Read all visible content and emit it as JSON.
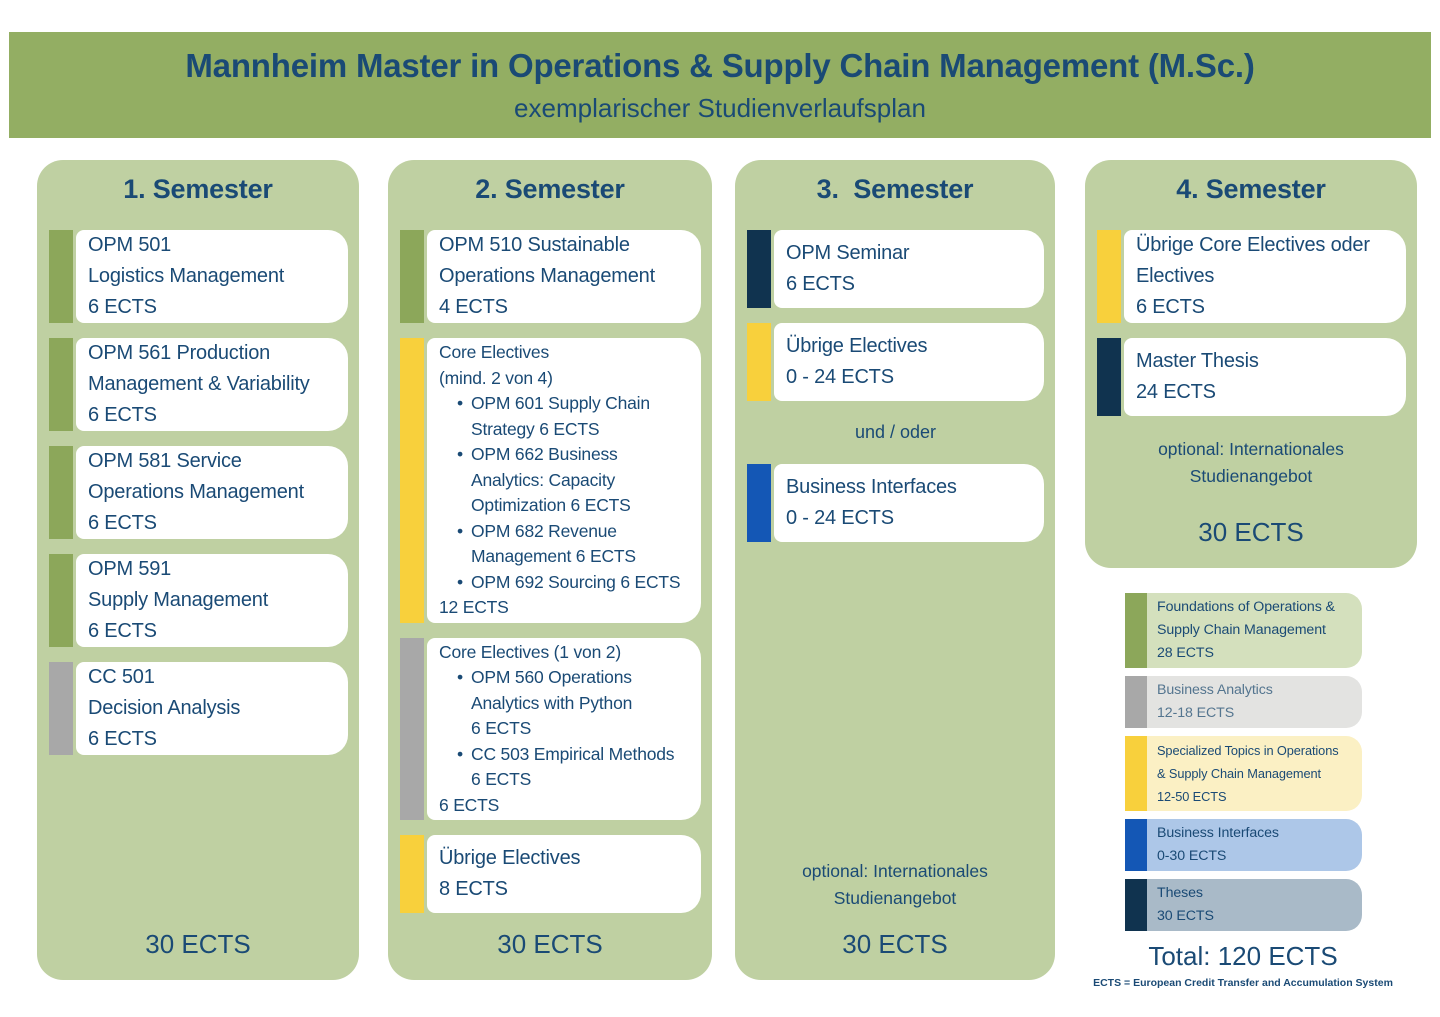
{
  "header": {
    "title": "Mannheim Master in Operations & Supply Chain Management (M.Sc.)",
    "subtitle": "exemplarischer Studienverlaufsplan"
  },
  "colors": {
    "header_green": "#93ae63",
    "panel_green": "#bfd0a2",
    "text_navy": "#1a4a75",
    "green": "#8ca75a",
    "gray": "#a8a8a8",
    "yellow": "#f8d03c",
    "navy": "#10334f",
    "blue": "#1457b5",
    "lightgreen": "#d4e0bd",
    "lightgray": "#e3e3e1",
    "lightyellow": "#fbf0c4",
    "lightblue": "#adc7e8",
    "bluegray": "#a9bac8"
  },
  "semesters": [
    {
      "title": "1. Semester",
      "total": "30 ECTS",
      "cards": [
        {
          "accent": "green",
          "lines": [
            {
              "t": "OPM 501"
            },
            {
              "t": "Logistics Management"
            },
            {
              "t": "6 ECTS"
            }
          ]
        },
        {
          "accent": "green",
          "lines": [
            {
              "t": "OPM 561 Production"
            },
            {
              "t": "Management & Variability"
            },
            {
              "t": "6 ECTS"
            }
          ]
        },
        {
          "accent": "green",
          "lines": [
            {
              "t": "OPM 581 Service"
            },
            {
              "t": "Operations Management"
            },
            {
              "t": "6 ECTS"
            }
          ]
        },
        {
          "accent": "green",
          "lines": [
            {
              "t": "OPM 591"
            },
            {
              "t": "Supply Management"
            },
            {
              "t": "6 ECTS"
            }
          ]
        },
        {
          "accent": "gray",
          "lines": [
            {
              "t": "CC 501"
            },
            {
              "t": "Decision Analysis"
            },
            {
              "t": "6 ECTS"
            }
          ]
        }
      ]
    },
    {
      "title": "2. Semester",
      "total": "30 ECTS",
      "cards": [
        {
          "accent": "green",
          "lines": [
            {
              "t": "OPM 510 Sustainable"
            },
            {
              "t": "Operations Management"
            },
            {
              "t": "4 ECTS"
            }
          ]
        },
        {
          "accent": "yellow",
          "compact": true,
          "lines": [
            {
              "t": "Core Electives"
            },
            {
              "t": "(mind. 2 von 4)"
            },
            {
              "t": "OPM 601 Supply Chain",
              "s": "b"
            },
            {
              "t": "Strategy 6 ECTS",
              "s": "i"
            },
            {
              "t": "OPM 662 Business",
              "s": "b"
            },
            {
              "t": "Analytics: Capacity",
              "s": "i"
            },
            {
              "t": "Optimization 6 ECTS",
              "s": "i"
            },
            {
              "t": "OPM 682 Revenue",
              "s": "b"
            },
            {
              "t": "Management 6 ECTS",
              "s": "i"
            },
            {
              "t": "OPM 692 Sourcing 6 ECTS",
              "s": "b"
            },
            {
              "t": "12 ECTS"
            }
          ]
        },
        {
          "accent": "gray",
          "compact": true,
          "lines": [
            {
              "t": "Core Electives (1 von 2)"
            },
            {
              "t": "OPM 560 Operations",
              "s": "b"
            },
            {
              "t": "Analytics with Python",
              "s": "i"
            },
            {
              "t": "6 ECTS",
              "s": "i"
            },
            {
              "t": "CC 503 Empirical Methods",
              "s": "b"
            },
            {
              "t": "6 ECTS",
              "s": "i"
            },
            {
              "t": "6 ECTS"
            }
          ]
        },
        {
          "accent": "yellow",
          "lines": [
            {
              "t": "Übrige Electives"
            },
            {
              "t": "8 ECTS"
            }
          ]
        }
      ]
    },
    {
      "title": "3.  Semester",
      "total": "30 ECTS",
      "optional_note": "optional: Internationales\nStudienangebot",
      "cards": [
        {
          "accent": "navy",
          "lines": [
            {
              "t": "OPM Seminar"
            },
            {
              "t": "6 ECTS"
            }
          ]
        },
        {
          "accent": "yellow",
          "lines": [
            {
              "t": "Übrige Electives"
            },
            {
              "t": "0 - 24 ECTS"
            }
          ]
        },
        {
          "divider": "und / oder"
        },
        {
          "accent": "blue",
          "lines": [
            {
              "t": "Business Interfaces"
            },
            {
              "t": "0 - 24 ECTS"
            }
          ]
        }
      ]
    },
    {
      "title": "4. Semester",
      "total": "30 ECTS",
      "optional_note": "optional: Internationales\nStudienangebot",
      "cards": [
        {
          "accent": "yellow",
          "lines": [
            {
              "t": "Übrige Core Electives oder"
            },
            {
              "t": "Electives"
            },
            {
              "t": "6 ECTS"
            }
          ]
        },
        {
          "accent": "navy",
          "lines": [
            {
              "t": "Master Thesis"
            },
            {
              "t": "24 ECTS"
            }
          ]
        }
      ]
    }
  ],
  "legend": {
    "items": [
      {
        "accent": "green",
        "bg": "lightgreen",
        "lines": [
          "Foundations of Operations &",
          "Supply Chain Management",
          "28 ECTS"
        ]
      },
      {
        "accent": "gray",
        "bg": "lightgray",
        "muted": true,
        "lines": [
          "Business Analytics",
          "12-18 ECTS"
        ]
      },
      {
        "accent": "yellow",
        "bg": "lightyellow",
        "small": true,
        "lines": [
          "Specialized Topics in Operations",
          "& Supply Chain Management",
          "12-50 ECTS"
        ]
      },
      {
        "accent": "blue",
        "bg": "lightblue",
        "lines": [
          "Business Interfaces",
          "0-30 ECTS"
        ]
      },
      {
        "accent": "navy",
        "bg": "bluegray",
        "lines": [
          "Theses",
          "30 ECTS"
        ]
      }
    ],
    "total": "Total: 120 ECTS",
    "note": "ECTS = European Credit Transfer and Accumulation System"
  }
}
